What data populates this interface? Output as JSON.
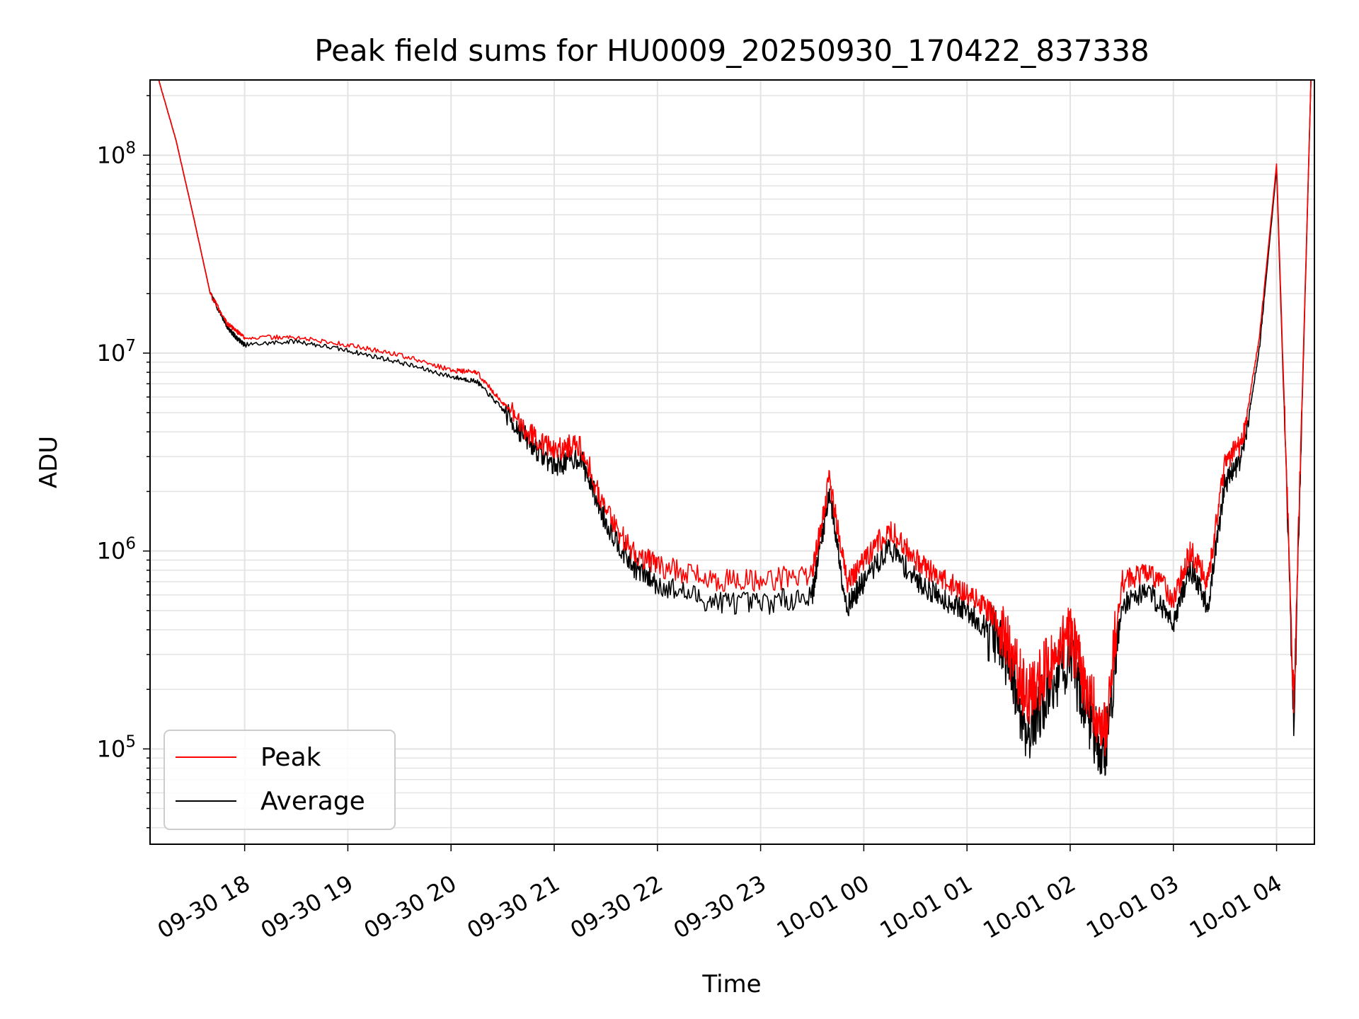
{
  "chart_data": {
    "type": "line",
    "title": "Peak field sums for HU0009_20250930_170422_837338",
    "xlabel": "Time",
    "ylabel": "ADU",
    "yscale": "log",
    "ylim": [
      33000,
      240000000
    ],
    "xlim": [
      "2025-09-30 17:05",
      "2025-10-01 04:22"
    ],
    "grid": true,
    "legend_position": "lower-left",
    "x_ticks": [
      {
        "value": "2025-09-30 18:00",
        "label": "09-30 18"
      },
      {
        "value": "2025-09-30 19:00",
        "label": "09-30 19"
      },
      {
        "value": "2025-09-30 20:00",
        "label": "09-30 20"
      },
      {
        "value": "2025-09-30 21:00",
        "label": "09-30 21"
      },
      {
        "value": "2025-09-30 22:00",
        "label": "09-30 22"
      },
      {
        "value": "2025-09-30 23:00",
        "label": "09-30 23"
      },
      {
        "value": "2025-10-01 00:00",
        "label": "10-01 00"
      },
      {
        "value": "2025-10-01 01:00",
        "label": "10-01 01"
      },
      {
        "value": "2025-10-01 02:00",
        "label": "10-01 02"
      },
      {
        "value": "2025-10-01 03:00",
        "label": "10-01 03"
      },
      {
        "value": "2025-10-01 04:00",
        "label": "10-01 04"
      }
    ],
    "y_ticks": [
      {
        "value": 100000,
        "base": "10",
        "exp": "5"
      },
      {
        "value": 1000000,
        "base": "10",
        "exp": "6"
      },
      {
        "value": 10000000,
        "base": "10",
        "exp": "7"
      },
      {
        "value": 100000000,
        "base": "10",
        "exp": "8"
      }
    ],
    "series": [
      {
        "name": "Peak",
        "color": "#ff0000",
        "x": [
          "2025-09-30 17:10",
          "2025-09-30 17:20",
          "2025-09-30 17:30",
          "2025-09-30 17:40",
          "2025-09-30 17:50",
          "2025-09-30 17:55",
          "2025-09-30 18:00",
          "2025-09-30 18:30",
          "2025-09-30 19:00",
          "2025-09-30 19:30",
          "2025-09-30 20:00",
          "2025-09-30 20:15",
          "2025-09-30 20:30",
          "2025-09-30 20:45",
          "2025-09-30 21:00",
          "2025-09-30 21:15",
          "2025-09-30 21:30",
          "2025-09-30 21:45",
          "2025-09-30 22:00",
          "2025-09-30 22:30",
          "2025-09-30 23:00",
          "2025-09-30 23:30",
          "2025-09-30 23:40",
          "2025-09-30 23:50",
          "2025-10-01 00:00",
          "2025-10-01 00:15",
          "2025-10-01 00:30",
          "2025-10-01 00:45",
          "2025-10-01 01:00",
          "2025-10-01 01:15",
          "2025-10-01 01:25",
          "2025-10-01 01:35",
          "2025-10-01 01:45",
          "2025-10-01 02:00",
          "2025-10-01 02:10",
          "2025-10-01 02:20",
          "2025-10-01 02:30",
          "2025-10-01 02:45",
          "2025-10-01 03:00",
          "2025-10-01 03:10",
          "2025-10-01 03:20",
          "2025-10-01 03:30",
          "2025-10-01 03:40",
          "2025-10-01 03:50",
          "2025-10-01 04:00",
          "2025-10-01 04:10",
          "2025-10-01 04:20"
        ],
        "values": [
          240000000,
          120000000,
          50000000,
          20000000,
          14000000,
          13000000,
          12000000,
          12000000,
          11000000,
          9800000,
          8200000,
          8000000,
          5600000,
          4000000,
          3200000,
          3500000,
          1600000,
          1000000,
          850000,
          720000,
          700000,
          780000,
          2300000,
          700000,
          900000,
          1300000,
          900000,
          720000,
          620000,
          470000,
          320000,
          180000,
          250000,
          380000,
          200000,
          120000,
          700000,
          800000,
          580000,
          1000000,
          700000,
          2800000,
          3500000,
          12000000,
          90000000,
          180000,
          240000000
        ]
      },
      {
        "name": "Average",
        "color": "#000000",
        "x": [
          "2025-09-30 17:10",
          "2025-09-30 17:20",
          "2025-09-30 17:30",
          "2025-09-30 17:40",
          "2025-09-30 17:50",
          "2025-09-30 17:55",
          "2025-09-30 18:00",
          "2025-09-30 18:30",
          "2025-09-30 19:00",
          "2025-09-30 19:30",
          "2025-09-30 20:00",
          "2025-09-30 20:15",
          "2025-09-30 20:30",
          "2025-09-30 20:45",
          "2025-09-30 21:00",
          "2025-09-30 21:15",
          "2025-09-30 21:30",
          "2025-09-30 21:45",
          "2025-09-30 22:00",
          "2025-09-30 22:30",
          "2025-09-30 23:00",
          "2025-09-30 23:30",
          "2025-09-30 23:40",
          "2025-09-30 23:50",
          "2025-10-01 00:00",
          "2025-10-01 00:15",
          "2025-10-01 00:30",
          "2025-10-01 00:45",
          "2025-10-01 01:00",
          "2025-10-01 01:15",
          "2025-10-01 01:25",
          "2025-10-01 01:35",
          "2025-10-01 01:45",
          "2025-10-01 02:00",
          "2025-10-01 02:10",
          "2025-10-01 02:20",
          "2025-10-01 02:30",
          "2025-10-01 02:45",
          "2025-10-01 03:00",
          "2025-10-01 03:10",
          "2025-10-01 03:20",
          "2025-10-01 03:30",
          "2025-10-01 03:40",
          "2025-10-01 03:50",
          "2025-10-01 04:00",
          "2025-10-01 04:10",
          "2025-10-01 04:20"
        ],
        "values": [
          240000000,
          120000000,
          50000000,
          20000000,
          13500000,
          12000000,
          11000000,
          11500000,
          10300000,
          9000000,
          7600000,
          7200000,
          5200000,
          3600000,
          2700000,
          3000000,
          1400000,
          850000,
          680000,
          560000,
          540000,
          600000,
          2000000,
          520000,
          700000,
          1050000,
          720000,
          580000,
          500000,
          380000,
          250000,
          120000,
          180000,
          290000,
          150000,
          90000,
          540000,
          640000,
          440000,
          820000,
          520000,
          2200000,
          3000000,
          10500000,
          85000000,
          150000,
          240000000
        ]
      }
    ]
  }
}
